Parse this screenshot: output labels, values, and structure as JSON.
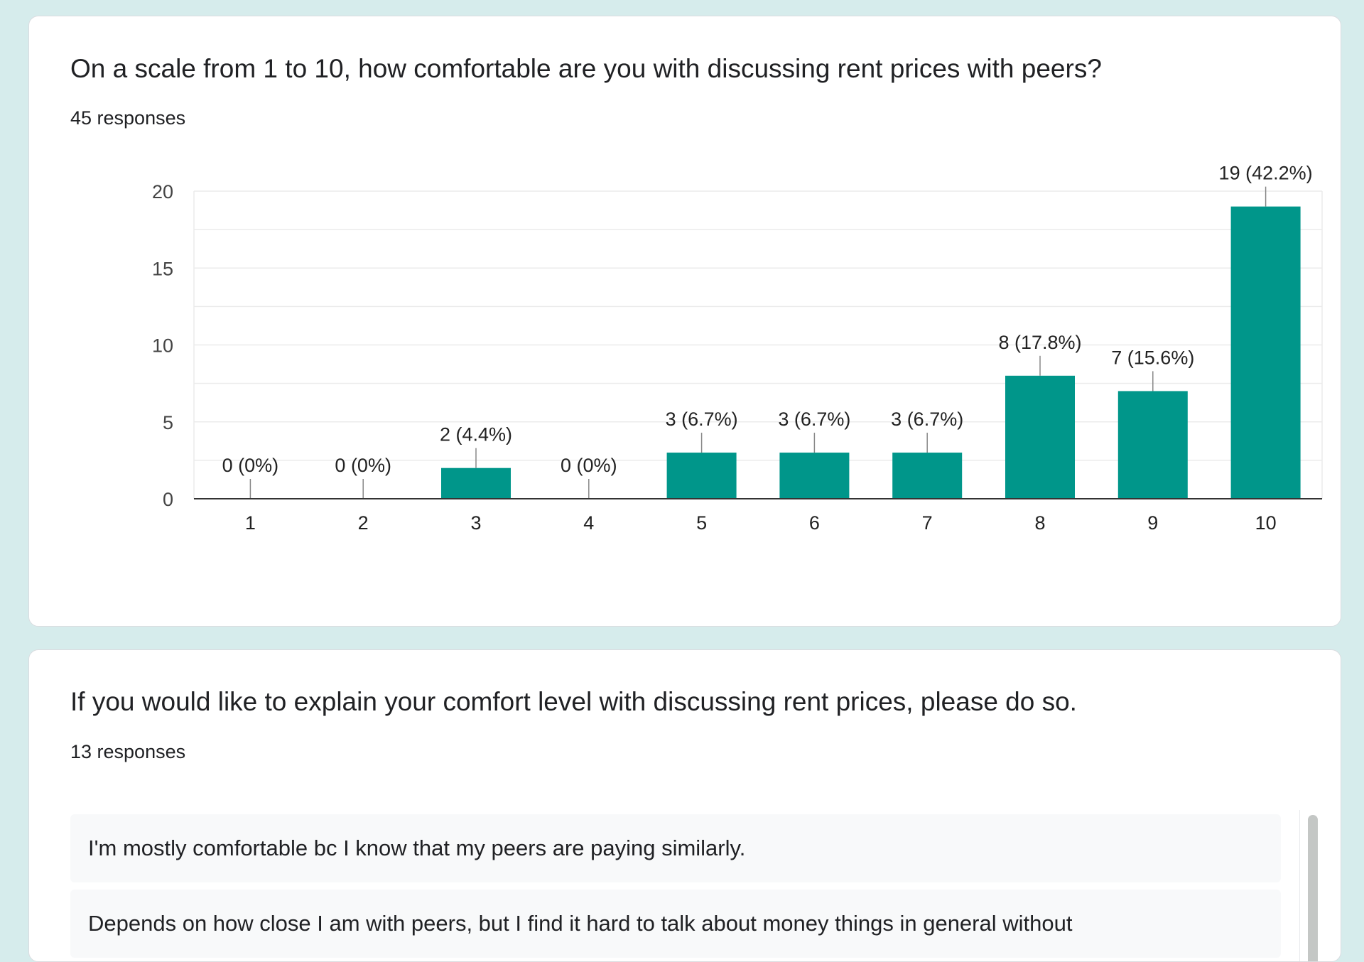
{
  "question1": {
    "title": "On a scale from 1 to 10, how comfortable are you with discussing rent prices with peers?",
    "responses": "45 responses"
  },
  "chart_data": {
    "type": "bar",
    "categories": [
      "1",
      "2",
      "3",
      "4",
      "5",
      "6",
      "7",
      "8",
      "9",
      "10"
    ],
    "values": [
      0,
      0,
      2,
      0,
      3,
      3,
      3,
      8,
      7,
      19
    ],
    "data_labels": [
      "0 (0%)",
      "0 (0%)",
      "2 (4.4%)",
      "0 (0%)",
      "3 (6.7%)",
      "3 (6.7%)",
      "3 (6.7%)",
      "8 (17.8%)",
      "7 (15.6%)",
      "19 (42.2%)"
    ],
    "yticks": [
      0,
      5,
      10,
      15,
      20
    ],
    "ylim": [
      0,
      20
    ],
    "grid": true,
    "bar_color": "#00968a"
  },
  "question2": {
    "title": "If you would like to explain your comfort level with discussing rent prices, please do so.",
    "responses": "13 responses",
    "items": [
      "I'm mostly comfortable bc I know that my peers are paying similarly.",
      "Depends on how close I am with peers, but I find it hard to talk about money things in general without"
    ]
  }
}
